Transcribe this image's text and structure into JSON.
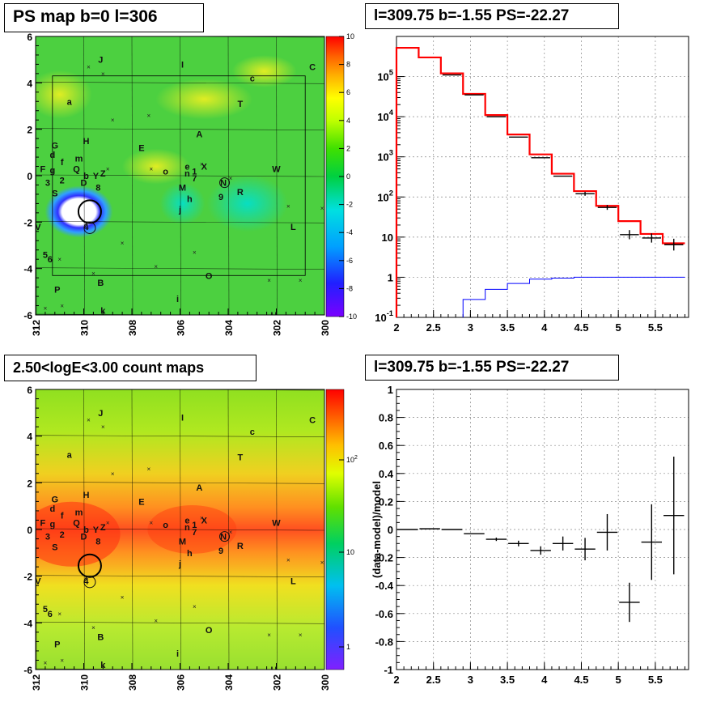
{
  "titles": {
    "tl": "PS map b=0 l=306",
    "tr": "l=309.75 b=-1.55 PS=-22.27",
    "bl": "2.50<logE<3.00 count maps",
    "br": "l=309.75 b=-1.55 PS=-22.27"
  },
  "chart_data": [
    {
      "type": "heatmap",
      "title": "PS map b=0 l=306",
      "x_ticks": [
        "312",
        "310",
        "308",
        "306",
        "304",
        "302",
        "300"
      ],
      "xlim": [
        312,
        300
      ],
      "y_ticks": [
        "6",
        "4",
        "2",
        "0",
        "-2",
        "-4",
        "-6"
      ],
      "ylim": [
        -6,
        6
      ],
      "colorbar_ticks": [
        "10",
        "8",
        "6",
        "4",
        "2",
        "0",
        "-2",
        "-4",
        "-6",
        "-8",
        "-10"
      ],
      "colorbar_range": [
        -10,
        10
      ],
      "labels": [
        {
          "t": "J",
          "l": 309.3,
          "b": 5.0
        },
        {
          "t": "I",
          "l": 305.9,
          "b": 4.8
        },
        {
          "t": "C",
          "l": 300.5,
          "b": 4.7
        },
        {
          "t": "c",
          "l": 303.0,
          "b": 4.2
        },
        {
          "t": "a",
          "l": 310.6,
          "b": 3.2
        },
        {
          "t": "T",
          "l": 303.5,
          "b": 3.1
        },
        {
          "t": "A",
          "l": 305.2,
          "b": 1.8
        },
        {
          "t": "H",
          "l": 309.9,
          "b": 1.5
        },
        {
          "t": "E",
          "l": 307.6,
          "b": 1.2
        },
        {
          "t": "G",
          "l": 311.2,
          "b": 1.3
        },
        {
          "t": "d",
          "l": 311.3,
          "b": 0.9
        },
        {
          "t": "m",
          "l": 310.2,
          "b": 0.75
        },
        {
          "t": "f",
          "l": 310.9,
          "b": 0.6
        },
        {
          "t": "F",
          "l": 311.7,
          "b": 0.3
        },
        {
          "t": "g",
          "l": 311.3,
          "b": 0.25
        },
        {
          "t": "Q",
          "l": 310.3,
          "b": 0.3
        },
        {
          "t": "W",
          "l": 302.0,
          "b": 0.3
        },
        {
          "t": "X",
          "l": 305.0,
          "b": 0.4
        },
        {
          "t": "e",
          "l": 305.7,
          "b": 0.4
        },
        {
          "t": "o",
          "l": 306.6,
          "b": 0.2
        },
        {
          "t": "1",
          "l": 305.4,
          "b": 0.2
        },
        {
          "t": "b",
          "l": 309.9,
          "b": 0.0
        },
        {
          "t": "Y",
          "l": 309.5,
          "b": 0.0
        },
        {
          "t": "Z",
          "l": 309.2,
          "b": 0.1
        },
        {
          "t": "n",
          "l": 305.7,
          "b": 0.1
        },
        {
          "t": "7",
          "l": 305.4,
          "b": -0.1
        },
        {
          "t": "2",
          "l": 310.9,
          "b": -0.2
        },
        {
          "t": "3",
          "l": 311.5,
          "b": -0.3
        },
        {
          "t": "D",
          "l": 310.0,
          "b": -0.3
        },
        {
          "t": "N",
          "l": 304.2,
          "b": -0.3
        },
        {
          "t": "8",
          "l": 309.4,
          "b": -0.5
        },
        {
          "t": "M",
          "l": 305.9,
          "b": -0.5
        },
        {
          "t": "S",
          "l": 311.2,
          "b": -0.75
        },
        {
          "t": "R",
          "l": 303.5,
          "b": -0.7
        },
        {
          "t": "h",
          "l": 305.6,
          "b": -1.0
        },
        {
          "t": "9",
          "l": 304.3,
          "b": -0.9
        },
        {
          "t": "j",
          "l": 306.0,
          "b": -1.45
        },
        {
          "t": "V",
          "l": 311.9,
          "b": -2.2
        },
        {
          "t": "4",
          "l": 309.9,
          "b": -2.2
        },
        {
          "t": "L",
          "l": 301.3,
          "b": -2.2
        },
        {
          "t": "5",
          "l": 311.6,
          "b": -3.4
        },
        {
          "t": "6",
          "l": 311.4,
          "b": -3.6
        },
        {
          "t": "O",
          "l": 304.8,
          "b": -4.3
        },
        {
          "t": "B",
          "l": 309.3,
          "b": -4.6
        },
        {
          "t": "P",
          "l": 311.1,
          "b": -4.9
        },
        {
          "t": "i",
          "l": 306.1,
          "b": -5.3
        },
        {
          "t": "k",
          "l": 309.2,
          "b": -5.8
        },
        {
          "t": "U",
          "l": 302.1,
          "b": -6.0
        }
      ]
    },
    {
      "type": "line",
      "title": "l=309.75 b=-1.55 PS=-22.27",
      "x_ticks": [
        "2",
        "2.5",
        "3",
        "3.5",
        "4",
        "4.5",
        "5",
        "5.5"
      ],
      "xlim": [
        2.0,
        5.95
      ],
      "y_ticks": [
        "10^-1",
        "1",
        "10",
        "10^2",
        "10^3",
        "10^4",
        "10^5"
      ],
      "ylim": [
        0.1,
        1000000
      ],
      "yscale": "log",
      "grid": true,
      "x_edges": [
        2.0,
        2.3,
        2.6,
        2.9,
        3.2,
        3.5,
        3.8,
        4.1,
        4.4,
        4.7,
        5.0,
        5.3,
        5.6,
        5.9
      ],
      "series": [
        {
          "color": "#ff0000",
          "values": [
            520000,
            300000,
            120000,
            37000,
            11000,
            3600,
            1150,
            380,
            140,
            60,
            25,
            12,
            7
          ]
        },
        {
          "color": "#0000ff",
          "values": [
            null,
            null,
            null,
            0.28,
            0.5,
            0.7,
            0.9,
            0.95,
            1.0,
            1.0,
            1.0,
            1.0,
            1.0
          ]
        },
        {
          "color": "#000000",
          "values": [
            null,
            null,
            110000,
            35000,
            10000,
            3100,
            950,
            330,
            120,
            55,
            11.5,
            9.5,
            6.5
          ],
          "err": [
            0,
            0,
            0,
            0,
            0,
            0,
            0,
            0,
            0.12,
            0.15,
            0.3,
            0.3,
            0.4
          ]
        }
      ]
    },
    {
      "type": "heatmap",
      "title": "2.50<logE<3.00 count maps",
      "x_ticks": [
        "312",
        "310",
        "308",
        "306",
        "304",
        "302",
        "300"
      ],
      "xlim": [
        312,
        300
      ],
      "y_ticks": [
        "6",
        "4",
        "2",
        "0",
        "-2",
        "-4",
        "-6"
      ],
      "ylim": [
        -6,
        6
      ],
      "colorbar_ticks": [
        "10^2",
        "10",
        "1"
      ],
      "colorbar_scale": "log"
    },
    {
      "type": "scatter",
      "title": "l=309.75 b=-1.55 PS=-22.27",
      "ylabel": "(data-model)/model",
      "x_ticks": [
        "2",
        "2.5",
        "3",
        "3.5",
        "4",
        "4.5",
        "5",
        "5.5"
      ],
      "xlim": [
        2.0,
        5.95
      ],
      "y_ticks": [
        "1",
        "0.8",
        "0.6",
        "0.4",
        "0.2",
        "0",
        "-0.2",
        "-0.4",
        "-0.6",
        "-0.8",
        "-1"
      ],
      "ylim": [
        -1,
        1
      ],
      "grid": true,
      "points": [
        {
          "x": 2.15,
          "y": 0.0,
          "ey": 0.005
        },
        {
          "x": 2.45,
          "y": 0.005,
          "ey": 0.005
        },
        {
          "x": 2.75,
          "y": 0.0,
          "ey": 0.005
        },
        {
          "x": 3.05,
          "y": -0.03,
          "ey": 0.008
        },
        {
          "x": 3.35,
          "y": -0.07,
          "ey": 0.012
        },
        {
          "x": 3.65,
          "y": -0.1,
          "ey": 0.02
        },
        {
          "x": 3.95,
          "y": -0.15,
          "ey": 0.03
        },
        {
          "x": 4.25,
          "y": -0.1,
          "ey": 0.05
        },
        {
          "x": 4.55,
          "y": -0.14,
          "ey": 0.08
        },
        {
          "x": 4.85,
          "y": -0.02,
          "ey": 0.13
        },
        {
          "x": 5.15,
          "y": -0.52,
          "ey": 0.14
        },
        {
          "x": 5.45,
          "y": -0.09,
          "ey": 0.27
        },
        {
          "x": 5.75,
          "y": 0.1,
          "ey": 0.42
        }
      ]
    }
  ]
}
